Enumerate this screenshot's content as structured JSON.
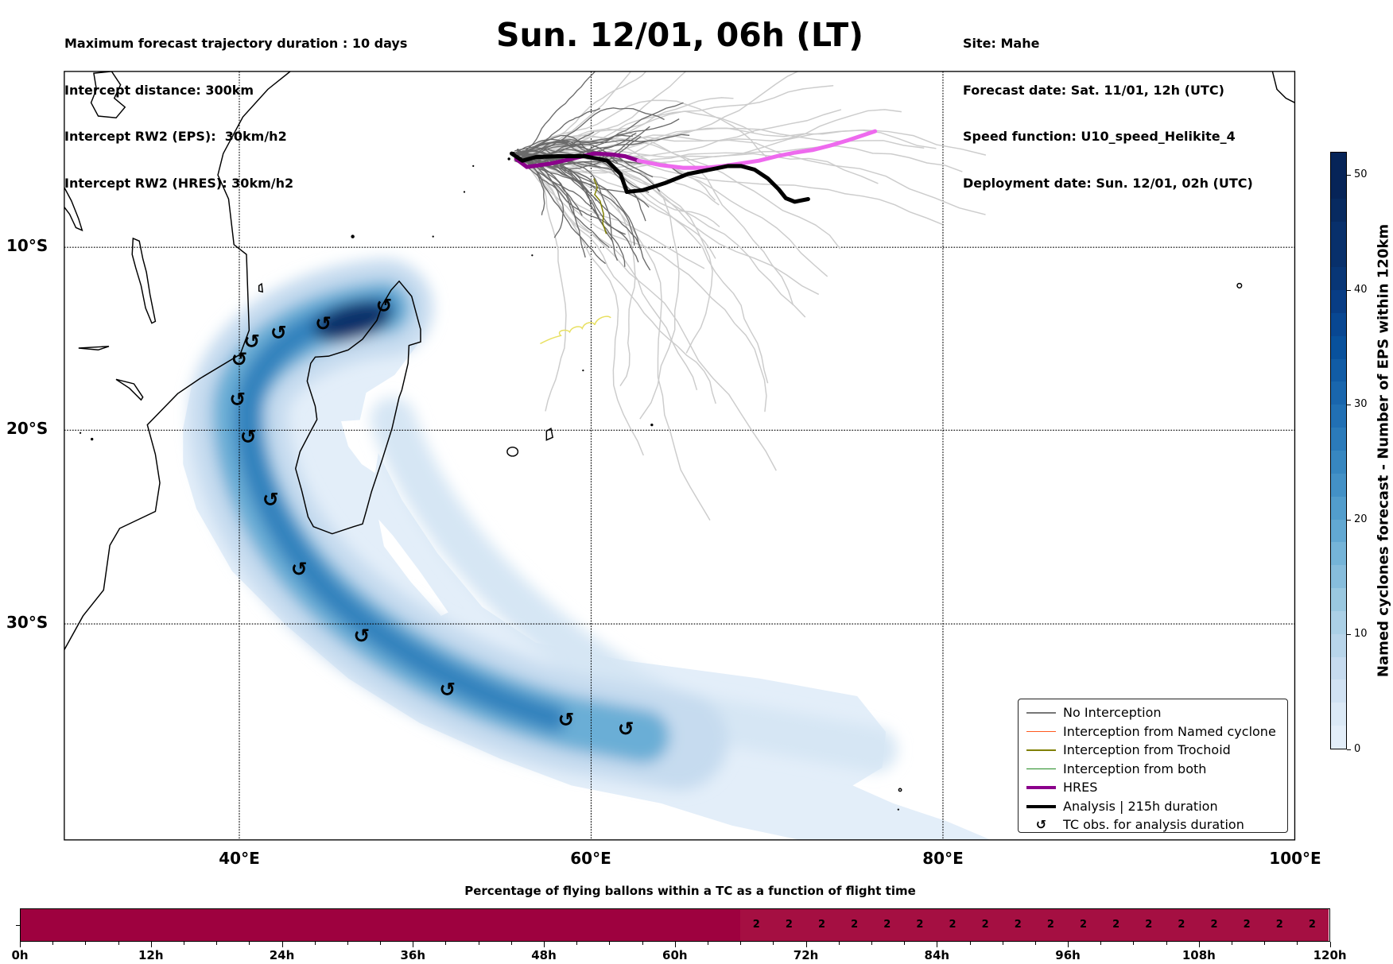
{
  "header": {
    "left": [
      "Maximum forecast trajectory duration : 10 days",
      "Intercept distance: 300km",
      "Intercept RW2 (EPS):  30km/h2",
      "Intercept RW2 (HRES): 30km/h2"
    ],
    "title": "Sun. 12/01, 06h (LT)",
    "right": [
      "Site: Mahe",
      "Forecast date: Sat. 11/01, 12h (UTC)",
      "Speed function: U10_speed_Helikite_4",
      "Deployment date: Sun. 12/01, 02h (UTC)"
    ]
  },
  "map": {
    "lat_labels": [
      "10°S",
      "20°S",
      "30°S"
    ],
    "lon_labels": [
      "40°E",
      "60°E",
      "80°E",
      "100°E"
    ]
  },
  "legend": {
    "items": [
      {
        "label": "No Interception",
        "color": "#777777",
        "kind": "thin"
      },
      {
        "label": "Interception from Named cyclone",
        "color": "#ff5a1f",
        "kind": "thin"
      },
      {
        "label": "Interception from Trochoid",
        "color": "#808000",
        "kind": "thin"
      },
      {
        "label": "Interception from both",
        "color": "#228b22",
        "kind": "thin"
      },
      {
        "label": "HRES",
        "color": "#8b008b",
        "kind": "thick"
      },
      {
        "label": "Analysis | 215h duration",
        "color": "#000000",
        "kind": "thick"
      },
      {
        "label": "TC obs. for analysis duration",
        "color": "#000000",
        "kind": "symbol",
        "symbol": "↺"
      }
    ]
  },
  "colorbar": {
    "title": "Named cyclones forecast - Number of EPS within 120km",
    "ticks": [
      "0",
      "10",
      "20",
      "30",
      "40",
      "50"
    ],
    "tick_values": [
      0,
      10,
      20,
      30,
      40,
      50
    ],
    "max": 52,
    "colors": [
      "#e3eef9",
      "#dbe9f6",
      "#d1e2f3",
      "#c6dbef",
      "#b8d5ea",
      "#abd0e6",
      "#9ac8e0",
      "#87bddc",
      "#75b4d8",
      "#62a8d2",
      "#529dcc",
      "#4391c6",
      "#3787c0",
      "#2b7bba",
      "#2170b4",
      "#1966ad",
      "#115ca5",
      "#08519c",
      "#084792",
      "#083d85",
      "#083676",
      "#08306b",
      "#08306b",
      "#072a60",
      "#062458",
      "#062458"
    ]
  },
  "flight_bar": {
    "title": "Percentage of flying ballons within a TC as a function of flight time",
    "tick_labels": [
      "0h",
      "12h",
      "24h",
      "36h",
      "48h",
      "60h",
      "72h",
      "84h",
      "96h",
      "108h",
      "120h"
    ],
    "max_hours": 120,
    "segments": [
      {
        "from_h": 0,
        "to_h": 66,
        "color": "#9e013f"
      },
      {
        "from_h": 66,
        "to_h": 120,
        "color": "#a50f42"
      }
    ],
    "cells_start_h": 66,
    "cell_step_h": 3,
    "cell_values": [
      "2",
      "2",
      "2",
      "2",
      "2",
      "2",
      "2",
      "2",
      "2",
      "2",
      "2",
      "2",
      "2",
      "2",
      "2",
      "2",
      "2",
      "2"
    ]
  }
}
